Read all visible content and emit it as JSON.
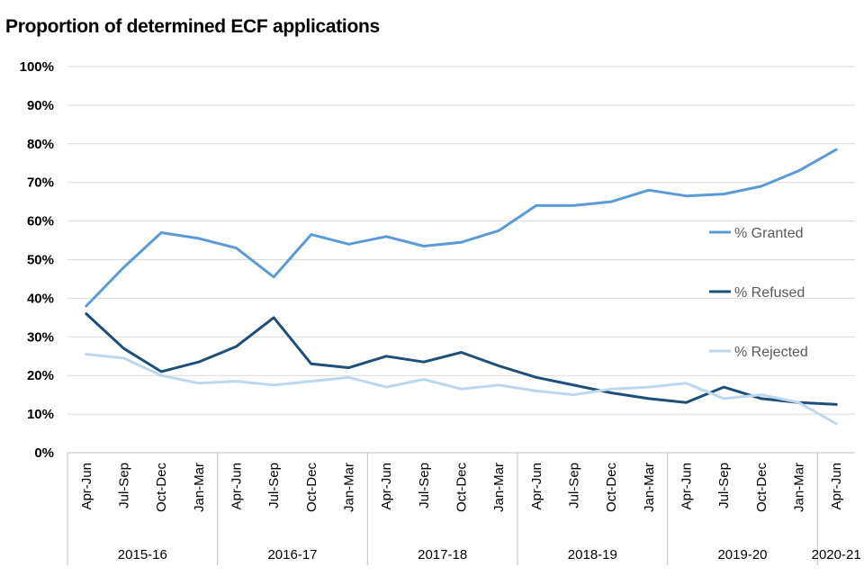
{
  "chart_data": {
    "type": "line",
    "title": "Proportion of determined ECF applications",
    "xlabel": "",
    "ylabel": "",
    "ylim": [
      0,
      100
    ],
    "y_ticks": [
      "0%",
      "10%",
      "20%",
      "30%",
      "40%",
      "50%",
      "60%",
      "70%",
      "80%",
      "90%",
      "100%"
    ],
    "grid": true,
    "categories": [
      "Apr-Jun",
      "Jul-Sep",
      "Oct-Dec",
      "Jan-Mar",
      "Apr-Jun",
      "Jul-Sep",
      "Oct-Dec",
      "Jan-Mar",
      "Apr-Jun",
      "Jul-Sep",
      "Oct-Dec",
      "Jan-Mar",
      "Apr-Jun",
      "Jul-Sep",
      "Oct-Dec",
      "Jan-Mar",
      "Apr-Jun",
      "Jul-Sep",
      "Oct-Dec",
      "Jan-Mar",
      "Apr-Jun"
    ],
    "groups": [
      {
        "label": "2015-16",
        "count": 4
      },
      {
        "label": "2016-17",
        "count": 4
      },
      {
        "label": "2017-18",
        "count": 4
      },
      {
        "label": "2018-19",
        "count": 4
      },
      {
        "label": "2019-20",
        "count": 4
      },
      {
        "label": "2020-21",
        "count": 1
      }
    ],
    "legend_position": "right",
    "series": [
      {
        "name": "% Granted",
        "color": "#5b9bd5",
        "values": [
          38,
          48,
          57,
          55.5,
          53,
          45.5,
          56.5,
          54,
          56,
          53.5,
          54.5,
          57.5,
          64,
          64,
          65,
          68,
          66.5,
          67,
          69,
          73,
          78.5
        ]
      },
      {
        "name": "% Refused",
        "color": "#1f4e79",
        "values": [
          36,
          27,
          21,
          23.5,
          27.5,
          35,
          23,
          22,
          25,
          23.5,
          26,
          22.5,
          19.5,
          17.5,
          15.5,
          14,
          13,
          17,
          14,
          13,
          12.5
        ]
      },
      {
        "name": "% Rejected",
        "color": "#bdd7ee",
        "values": [
          25.5,
          24.5,
          20,
          18,
          18.5,
          17.5,
          18.5,
          19.5,
          17,
          19,
          16.5,
          17.5,
          16,
          15,
          16.5,
          17,
          18,
          14,
          15,
          13,
          7.5
        ]
      }
    ]
  }
}
